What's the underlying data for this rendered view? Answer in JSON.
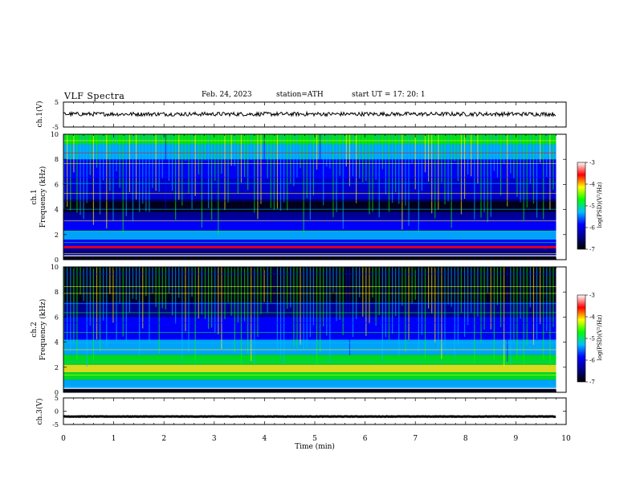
{
  "header": {
    "title": "VLF Spectra",
    "date": "Feb. 24, 2023",
    "station": "station=ATH",
    "start": "start UT =   17: 20: 1"
  },
  "chart_data": [
    {
      "type": "line",
      "id": "ch1-waveform",
      "ylabel": "ch.1(V)",
      "ylim": [
        -5,
        5
      ],
      "y_ticks": [
        "5",
        "-5"
      ],
      "approx_level": 0.2,
      "xlim": [
        0,
        10
      ]
    },
    {
      "type": "heatmap",
      "id": "ch1-spectrogram",
      "ylabel": "ch.1\nFrequency (kHz)",
      "ylabel_lines": [
        "ch.1",
        "Frequency (kHz)"
      ],
      "ylim": [
        0,
        10
      ],
      "y_ticks": [
        "0",
        "2",
        "4",
        "6",
        "8",
        "10"
      ],
      "xlim": [
        0,
        9.8
      ],
      "colorbar": {
        "label": "log(PSD)(V²/Hz)",
        "range": [
          -7,
          -3
        ],
        "ticks": [
          "-3",
          "-4",
          "-5",
          "-6",
          "-7"
        ]
      },
      "colormap": [
        "#000000",
        "#00008b",
        "#0000ff",
        "#00bfff",
        "#00ff00",
        "#ffff00",
        "#ff0000",
        "#ffffff"
      ]
    },
    {
      "type": "heatmap",
      "id": "ch2-spectrogram",
      "ylabel": "ch.2\nFrequency (kHz)",
      "ylabel_lines": [
        "ch.2",
        "Frequency (kHz)"
      ],
      "ylim": [
        0,
        10
      ],
      "y_ticks": [
        "0",
        "2",
        "4",
        "6",
        "8",
        "10"
      ],
      "xlim": [
        0,
        9.8
      ],
      "colorbar": {
        "label": "log(PSD)(V²/Hz)",
        "range": [
          -7,
          -3
        ],
        "ticks": [
          "-3",
          "-4",
          "-5",
          "-6",
          "-7"
        ]
      },
      "colormap": [
        "#000000",
        "#00008b",
        "#0000ff",
        "#00bfff",
        "#00ff00",
        "#ffff00",
        "#ff0000",
        "#ffffff"
      ]
    },
    {
      "type": "line",
      "id": "ch3-waveform",
      "ylabel": "ch.3(V)",
      "ylim": [
        -5,
        5
      ],
      "y_ticks": [
        "5",
        "0",
        "-5"
      ],
      "approx_level": -2.0,
      "xlim": [
        0,
        9.8
      ]
    }
  ],
  "x_axis": {
    "label": "Time (min)",
    "range": [
      0,
      10
    ],
    "ticks": [
      "0",
      "1",
      "2",
      "3",
      "4",
      "5",
      "6",
      "7",
      "8",
      "9",
      "10"
    ]
  }
}
